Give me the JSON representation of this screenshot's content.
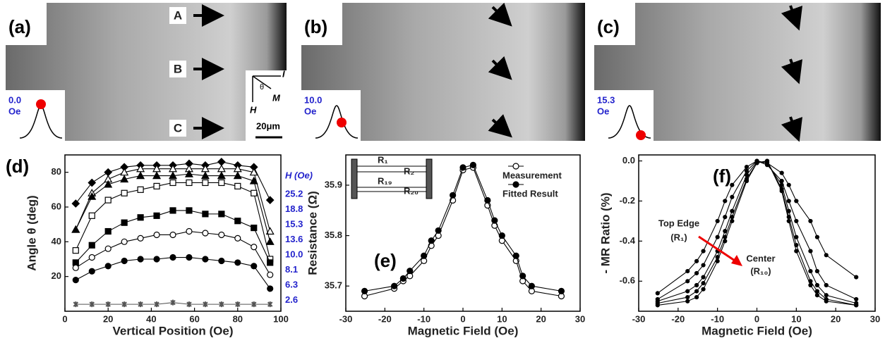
{
  "images": [
    {
      "label": "(a)",
      "field": "0.0",
      "unit": "Oe",
      "arrows": [
        "A",
        "B",
        "C"
      ],
      "axes": [
        "I",
        "θ",
        "M",
        "H"
      ],
      "scale": "20μm"
    },
    {
      "label": "(b)",
      "field": "10.0",
      "unit": "Oe"
    },
    {
      "label": "(c)",
      "field": "15.3",
      "unit": "Oe"
    }
  ],
  "chart_data": [
    {
      "type": "line",
      "panel_label": "(d)",
      "x_label": "Vertical Position (Oe)",
      "y_label": "Angle θ (deg)",
      "legend_title": "H (Oe)",
      "x": [
        5,
        12.5,
        20,
        27.5,
        35,
        42.5,
        50,
        57.5,
        65,
        72.5,
        80,
        87.5,
        95
      ],
      "xlim": [
        0,
        100
      ],
      "xticks": [
        0,
        20,
        40,
        60,
        80,
        100
      ],
      "ylim": [
        0,
        90
      ],
      "yticks": [
        20,
        40,
        60,
        80
      ],
      "series": [
        {
          "name": "25.2",
          "color": "#000",
          "marker": "diamond",
          "filled": true,
          "values": [
            62,
            74,
            80,
            83,
            84,
            84,
            84,
            85,
            84,
            86,
            84,
            83,
            64
          ]
        },
        {
          "name": "18.8",
          "color": "#000",
          "marker": "triangle",
          "filled": false,
          "values": [
            47,
            68,
            76,
            80,
            82,
            82,
            82,
            82,
            82,
            82,
            82,
            80,
            46
          ]
        },
        {
          "name": "15.3",
          "color": "#000",
          "marker": "triangle",
          "filled": true,
          "values": [
            47,
            66,
            73,
            76,
            78,
            78,
            78,
            79,
            78,
            78,
            78,
            75,
            40
          ]
        },
        {
          "name": "13.6",
          "color": "#000",
          "marker": "square",
          "filled": false,
          "values": [
            35,
            55,
            64,
            68,
            70,
            72,
            74,
            74,
            74,
            74,
            72,
            68,
            30
          ]
        },
        {
          "name": "10.0",
          "color": "#000",
          "marker": "square",
          "filled": true,
          "values": [
            28,
            38,
            46,
            51,
            54,
            55,
            58,
            58,
            56,
            56,
            52,
            48,
            28
          ]
        },
        {
          "name": "8.1",
          "color": "#000",
          "marker": "circle",
          "filled": false,
          "values": [
            25,
            31,
            36,
            40,
            42,
            44,
            44,
            46,
            45,
            44,
            42,
            37,
            21
          ]
        },
        {
          "name": "6.3",
          "color": "#000",
          "marker": "circle",
          "filled": true,
          "values": [
            18,
            23,
            26,
            29,
            30,
            30,
            31,
            31,
            30,
            29,
            28,
            26,
            13
          ]
        },
        {
          "name": "2.6",
          "color": "#555",
          "marker": "star",
          "filled": true,
          "values": [
            4,
            4,
            4,
            4,
            4,
            4,
            5,
            4,
            4,
            4,
            4,
            4,
            4
          ]
        }
      ]
    },
    {
      "type": "line",
      "panel_label": "(e)",
      "x_label": "Magnetic  Field  (Oe)",
      "y_label": "Resistance (Ω)",
      "inset_labels": [
        "R₁",
        "R₂",
        "R₁₉",
        "R₂₀"
      ],
      "x": [
        -25.2,
        -17.6,
        -15.3,
        -13.6,
        -10,
        -8.1,
        -6.3,
        -2.6,
        0,
        2.6,
        6.3,
        8.1,
        10,
        13.6,
        15.3,
        17.6,
        25.2
      ],
      "xlim": [
        -30,
        30
      ],
      "xticks": [
        -30,
        -20,
        -10,
        0,
        10,
        20,
        30
      ],
      "ylim": [
        35.65,
        35.96
      ],
      "yticks": [
        35.7,
        35.8,
        35.9
      ],
      "series": [
        {
          "name": "Measurement",
          "color": "#000",
          "marker": "circle",
          "filled": false,
          "values": [
            35.68,
            35.695,
            35.71,
            35.72,
            35.75,
            35.78,
            35.8,
            35.87,
            35.93,
            35.935,
            35.86,
            35.82,
            35.79,
            35.75,
            35.71,
            35.69,
            35.68
          ]
        },
        {
          "name": "Fitted Result",
          "color": "#000",
          "marker": "circle",
          "filled": true,
          "values": [
            35.69,
            35.7,
            35.715,
            35.73,
            35.76,
            35.79,
            35.81,
            35.88,
            35.935,
            35.94,
            35.87,
            35.83,
            35.8,
            35.76,
            35.72,
            35.7,
            35.69
          ]
        }
      ]
    },
    {
      "type": "line",
      "panel_label": "(f)",
      "x_label": "Magnetic  Field  (Oe)",
      "y_label": "- MR Ratio (%)",
      "annotations": [
        "Top Edge",
        "(R₁)",
        "Center",
        "(R₁₀)"
      ],
      "x": [
        -25.2,
        -17.6,
        -15.3,
        -13.6,
        -10,
        -8.1,
        -6.3,
        -2.6,
        0,
        2.6,
        6.3,
        8.1,
        10,
        13.6,
        15.3,
        17.6,
        25.2
      ],
      "xlim": [
        -30,
        30
      ],
      "xticks": [
        -30,
        -20,
        -10,
        0,
        10,
        20,
        30
      ],
      "ylim": [
        -0.75,
        0.03
      ],
      "yticks": [
        {
          "value": 0,
          "label": "0.0"
        },
        -0.2,
        -0.4,
        -0.6
      ],
      "series": [
        {
          "color": "#000",
          "values": [
            -0.66,
            -0.55,
            -0.5,
            -0.45,
            -0.3,
            -0.2,
            -0.12,
            -0.03,
            0,
            -0.01,
            -0.06,
            -0.12,
            -0.2,
            -0.3,
            -0.38,
            -0.47,
            -0.58
          ]
        },
        {
          "color": "#000",
          "values": [
            -0.69,
            -0.6,
            -0.56,
            -0.52,
            -0.38,
            -0.28,
            -0.18,
            -0.05,
            0,
            -0.02,
            -0.1,
            -0.2,
            -0.3,
            -0.45,
            -0.55,
            -0.62,
            -0.69
          ]
        },
        {
          "color": "#000",
          "values": [
            -0.7,
            -0.65,
            -0.62,
            -0.58,
            -0.45,
            -0.35,
            -0.25,
            -0.07,
            -0.005,
            -0.01,
            -0.12,
            -0.25,
            -0.38,
            -0.55,
            -0.62,
            -0.67,
            -0.71
          ]
        },
        {
          "color": "#000",
          "values": [
            -0.71,
            -0.68,
            -0.65,
            -0.61,
            -0.48,
            -0.38,
            -0.28,
            -0.09,
            -0.01,
            0,
            -0.14,
            -0.28,
            -0.42,
            -0.6,
            -0.65,
            -0.69,
            -0.72
          ]
        },
        {
          "color": "#000",
          "values": [
            -0.72,
            -0.7,
            -0.68,
            -0.64,
            -0.5,
            -0.4,
            -0.3,
            -0.1,
            -0.01,
            0,
            -0.15,
            -0.3,
            -0.45,
            -0.62,
            -0.67,
            -0.7,
            -0.72
          ]
        }
      ]
    }
  ]
}
